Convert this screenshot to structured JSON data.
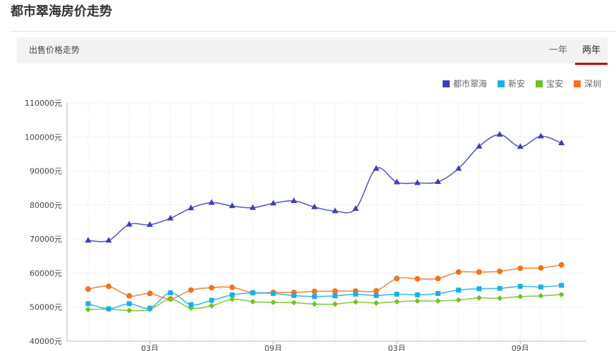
{
  "page": {
    "title": "都市翠海房价走势",
    "section_label": "出售价格走势",
    "tabs": [
      {
        "label": "一年",
        "active": false
      },
      {
        "label": "两年",
        "active": true
      }
    ]
  },
  "chart_data": {
    "type": "line",
    "title": "",
    "xlabel": "",
    "ylabel": "",
    "ylim": [
      40000,
      110000
    ],
    "y_ticks": [
      40000,
      50000,
      60000,
      70000,
      80000,
      90000,
      100000,
      110000
    ],
    "y_tick_labels": [
      "40000元",
      "50000元",
      "60000元",
      "70000元",
      "80000元",
      "90000元",
      "100000元",
      "110000元"
    ],
    "x_tick_labels": [
      {
        "index": 3,
        "label": "03月"
      },
      {
        "index": 9,
        "label": "09月"
      },
      {
        "index": 15,
        "label": "03月"
      },
      {
        "index": 21,
        "label": "09月"
      }
    ],
    "grid": true,
    "legend_position": "top-right",
    "series": [
      {
        "name": "都市翠海",
        "color": "#3d3dbb",
        "marker": "triangle",
        "values": [
          69600,
          69600,
          74300,
          74200,
          76100,
          79100,
          80700,
          79700,
          79200,
          80500,
          81200,
          79400,
          78200,
          78900,
          90700,
          86700,
          86500,
          86800,
          90700,
          97200,
          100700,
          97100,
          100200,
          98200
        ]
      },
      {
        "name": "新安",
        "color": "#1ab0e0",
        "marker": "square",
        "values": [
          51000,
          49500,
          51000,
          49700,
          54200,
          50700,
          52000,
          53600,
          54200,
          54000,
          53400,
          53100,
          53300,
          53800,
          53400,
          53800,
          53600,
          54000,
          55000,
          55400,
          55500,
          56100,
          55900,
          56400
        ]
      },
      {
        "name": "宝安",
        "color": "#6ec21e",
        "marker": "diamond",
        "values": [
          49300,
          49400,
          49000,
          49300,
          52300,
          49700,
          50400,
          52300,
          51600,
          51400,
          51300,
          50900,
          50900,
          51500,
          51200,
          51600,
          51800,
          51800,
          52100,
          52700,
          52600,
          53100,
          53300,
          53700
        ]
      },
      {
        "name": "深圳",
        "color": "#f0731f",
        "marker": "circle",
        "values": [
          55300,
          56100,
          53300,
          54000,
          52400,
          55000,
          55700,
          55800,
          54200,
          54300,
          54300,
          54600,
          54700,
          54700,
          54800,
          58400,
          58300,
          58400,
          60300,
          60300,
          60500,
          61400,
          61500,
          62400
        ]
      }
    ]
  }
}
